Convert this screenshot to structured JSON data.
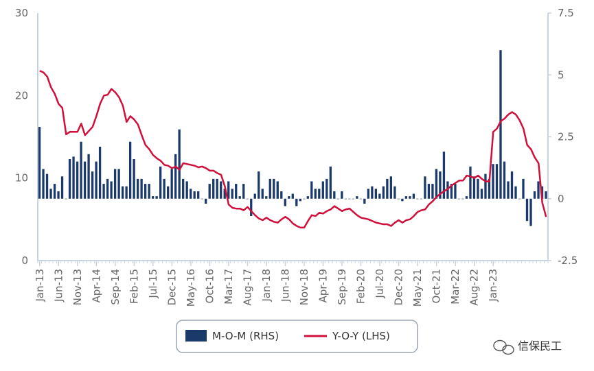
{
  "chart_data": {
    "type": "bar+line",
    "left_axis": {
      "ticks": [
        "0",
        "10",
        "20",
        "30"
      ],
      "ylim": [
        0,
        30
      ]
    },
    "right_axis": {
      "ticks": [
        "-2.5",
        "0",
        "2.5",
        "5",
        "7.5"
      ],
      "ylim": [
        -2.5,
        7.5
      ]
    },
    "x_tick_labels": [
      "Jan-13",
      "Jun-13",
      "Nov-13",
      "Apr-14",
      "Sep-14",
      "Feb-15",
      "Jul-15",
      "Dec-15",
      "May-16",
      "Oct-16",
      "Mar-17",
      "Aug-17",
      "Jan-18",
      "Jun-18",
      "Nov-18",
      "Apr-19",
      "Sep-19",
      "Feb-20",
      "Jul-20",
      "Dec-20",
      "May-21",
      "Oct-21",
      "Mar-22",
      "Aug-22",
      "Jan-23"
    ],
    "legend_position": "bottom",
    "grid": false,
    "colors": {
      "bar": "#1b3a6b",
      "line": "#d0103a",
      "axis": "#c8d4e0"
    },
    "series": [
      {
        "name": "M-O-M (RHS)",
        "axis": "right",
        "type": "bar",
        "values": [
          2.9,
          1.2,
          1.0,
          0.4,
          0.6,
          0.3,
          0.9,
          0.0,
          1.6,
          1.7,
          1.5,
          2.3,
          1.5,
          1.8,
          1.1,
          1.5,
          2.1,
          0.6,
          0.8,
          0.7,
          1.2,
          1.2,
          0.5,
          0.5,
          2.3,
          1.6,
          0.8,
          0.8,
          0.6,
          0.6,
          0.1,
          0.1,
          1.3,
          0.8,
          0.5,
          1.2,
          1.8,
          2.8,
          0.8,
          0.7,
          0.4,
          0.3,
          0.3,
          0.0,
          -0.2,
          0.6,
          0.8,
          0.8,
          0.7,
          0.4,
          0.7,
          0.4,
          0.6,
          0.1,
          0.6,
          0.0,
          -0.7,
          0.2,
          1.1,
          0.4,
          0.1,
          0.8,
          0.8,
          0.7,
          0.3,
          -0.3,
          0.1,
          0.2,
          -0.3,
          -0.1,
          0.0,
          0.1,
          0.7,
          0.4,
          0.4,
          0.7,
          0.8,
          1.3,
          0.3,
          0.0,
          0.3,
          0.0,
          0.0,
          0.0,
          0.1,
          0.0,
          -0.2,
          0.4,
          0.5,
          0.4,
          0.2,
          0.5,
          0.8,
          0.9,
          0.5,
          0.0,
          -0.1,
          0.1,
          0.1,
          0.2,
          0.0,
          0.0,
          0.9,
          0.6,
          0.6,
          1.2,
          1.1,
          1.9,
          0.7,
          0.6,
          0.6,
          0.0,
          0.0,
          0.1,
          1.3,
          0.9,
          0.8,
          0.4,
          1.0,
          0.8,
          1.4,
          1.4,
          6.0,
          1.5,
          0.7,
          1.1,
          0.5,
          0.0,
          0.8,
          -0.9,
          -1.1,
          0.3,
          0.7,
          0.5,
          0.3
        ]
      },
      {
        "name": "Y-O-Y (LHS)",
        "axis": "left",
        "type": "line",
        "values": [
          23.0,
          22.8,
          22.3,
          21.0,
          20.2,
          19.0,
          18.5,
          15.3,
          15.6,
          15.6,
          15.6,
          16.6,
          15.2,
          15.7,
          16.2,
          17.5,
          19.0,
          20.0,
          20.1,
          20.8,
          20.4,
          19.8,
          18.8,
          16.8,
          17.5,
          17.1,
          16.5,
          15.2,
          14.0,
          13.5,
          12.8,
          12.4,
          12.1,
          11.6,
          11.5,
          11.2,
          11.4,
          11.0,
          11.8,
          11.7,
          11.6,
          11.5,
          11.3,
          11.4,
          11.2,
          10.9,
          10.9,
          10.6,
          10.4,
          9.0,
          6.8,
          6.4,
          6.3,
          6.3,
          6.1,
          6.5,
          6.0,
          5.5,
          5.1,
          4.9,
          5.2,
          4.9,
          4.7,
          4.6,
          5.0,
          5.3,
          5.0,
          4.5,
          4.2,
          4.0,
          4.0,
          4.8,
          5.5,
          5.4,
          5.8,
          5.7,
          6.0,
          6.2,
          6.6,
          6.3,
          6.0,
          6.2,
          6.3,
          5.9,
          5.5,
          5.2,
          5.1,
          5.0,
          4.8,
          4.6,
          4.5,
          4.4,
          4.4,
          4.2,
          4.6,
          4.9,
          4.6,
          4.9,
          5.0,
          5.4,
          5.9,
          6.1,
          6.2,
          6.8,
          7.2,
          7.7,
          8.1,
          8.4,
          8.7,
          9.1,
          9.4,
          9.7,
          9.7,
          10.3,
          10.2,
          10.0,
          10.3,
          9.9,
          9.6,
          9.6,
          15.6,
          16.0,
          16.9,
          17.2,
          17.7,
          18.0,
          17.7,
          17.0,
          16.0,
          14.0,
          13.5,
          12.5,
          11.8,
          7.0,
          5.3
        ]
      }
    ]
  },
  "watermark": {
    "text": "信保民工"
  }
}
